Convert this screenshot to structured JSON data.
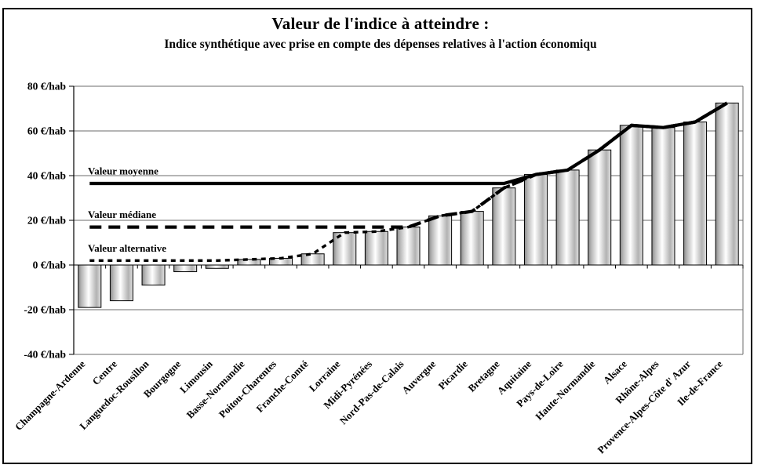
{
  "chart_data": {
    "type": "bar",
    "title": "Valeur de l'indice à atteindre :",
    "subtitle": "Indice synthétique avec prise en compte des dépenses relatives à l'action économiqu",
    "y_axis": {
      "unit_suffix": " €/hab",
      "min": -40,
      "max": 80,
      "step": 20,
      "tick_labels": [
        "80 €/hab",
        "60 €/hab",
        "40 €/hab",
        "20 €/hab",
        "0 €/hab",
        "-20 €/hab",
        "-40 €/hab"
      ]
    },
    "categories": [
      "Champagne-Ardenne",
      "Centre",
      "Languedoc-Rousillon",
      "Bourgogne",
      "Limousin",
      "Basse-Normandie",
      "Poitou-Charentes",
      "Franche-Comté",
      "Lorraine",
      "Midi-Pyrénées",
      "Nord-Pas-de-Calais",
      "Auvergne",
      "Picardie",
      "Bretagne",
      "Aquitaine",
      "Pays-de-Loire",
      "Haute-Normandie",
      "Alsace",
      "Rhône-Alpes",
      "Provence-Alpes-Côte d' Azur",
      "Ile-de-France"
    ],
    "values": [
      -19,
      -16,
      -9,
      -3,
      -1.5,
      2.5,
      3,
      5,
      14.5,
      15,
      17,
      22,
      24,
      34.5,
      40.5,
      42.5,
      51.5,
      62.5,
      61.5,
      64,
      72.5
    ],
    "reference_lines": [
      {
        "label": "Valeur moyenne",
        "value": 36.5,
        "style": "solid"
      },
      {
        "label": "Valeur médiane",
        "value": 17,
        "style": "long-dash"
      },
      {
        "label": "Valeur alternative",
        "value": 2,
        "style": "dotted"
      }
    ],
    "reference_line_rule": "each line follows max(its value, bar value) across categories",
    "layout": {
      "grid": true,
      "legend": "none",
      "background": "#ffffff",
      "line_color": "#000000",
      "grid_color": "#6b6b6b",
      "bar_border": "#000000",
      "bar_fill_edge": "#8a8a8a",
      "bar_fill_center": "#ffffff"
    }
  }
}
